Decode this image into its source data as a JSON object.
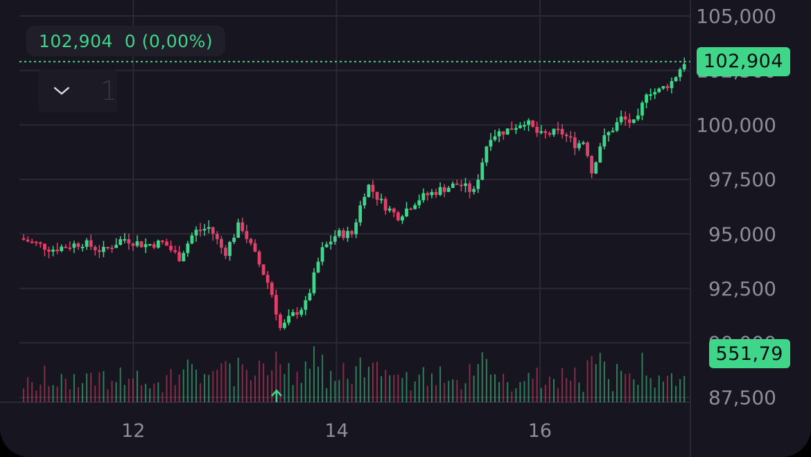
{
  "legend": {
    "price": "102,904",
    "change": "0 (0,00%)"
  },
  "collapse": {
    "count": "1"
  },
  "price_label": "102,904",
  "volume_label": "551,79",
  "colors": {
    "background": "#17151f",
    "up": "#3fd68a",
    "down": "#e0416a",
    "grid": "#2b2935",
    "axis_text": "#8f8d99"
  },
  "chart_data": {
    "type": "candlestick",
    "y_ticks": [
      "105,000",
      "102,500",
      "100,000",
      "97,500",
      "95,000",
      "92,500",
      "90,000",
      "87,500"
    ],
    "y_tick_values": [
      105000,
      102500,
      100000,
      97500,
      95000,
      92500,
      90000,
      87500
    ],
    "x_ticks": [
      "12",
      "14",
      "16"
    ],
    "x_tick_values": [
      12,
      14,
      16
    ],
    "xlim": [
      10.88,
      17.48
    ],
    "ylim": [
      87200,
      105250
    ],
    "last_price": 102904,
    "last_volume": 551.79,
    "price_path": [
      [
        10.88,
        94800
      ],
      [
        11.2,
        94300
      ],
      [
        11.5,
        94600
      ],
      [
        11.7,
        94200
      ],
      [
        11.9,
        94800
      ],
      [
        12.1,
        94500
      ],
      [
        12.3,
        94600
      ],
      [
        12.45,
        93900
      ],
      [
        12.6,
        95100
      ],
      [
        12.75,
        95300
      ],
      [
        12.9,
        94100
      ],
      [
        13.05,
        95500
      ],
      [
        13.2,
        94000
      ],
      [
        13.35,
        92500
      ],
      [
        13.45,
        90600
      ],
      [
        13.55,
        91200
      ],
      [
        13.7,
        91800
      ],
      [
        13.85,
        94200
      ],
      [
        14.0,
        95000
      ],
      [
        14.15,
        95000
      ],
      [
        14.3,
        97300
      ],
      [
        14.45,
        96400
      ],
      [
        14.6,
        95800
      ],
      [
        14.8,
        96600
      ],
      [
        15.0,
        97000
      ],
      [
        15.2,
        97300
      ],
      [
        15.35,
        96900
      ],
      [
        15.5,
        99500
      ],
      [
        15.7,
        99800
      ],
      [
        15.85,
        100200
      ],
      [
        16.0,
        99500
      ],
      [
        16.2,
        99700
      ],
      [
        16.35,
        99100
      ],
      [
        16.45,
        99300
      ],
      [
        16.5,
        97700
      ],
      [
        16.6,
        99200
      ],
      [
        16.8,
        100300
      ],
      [
        16.95,
        100000
      ],
      [
        17.05,
        101600
      ],
      [
        17.15,
        101500
      ],
      [
        17.3,
        102000
      ],
      [
        17.42,
        102904
      ]
    ]
  }
}
